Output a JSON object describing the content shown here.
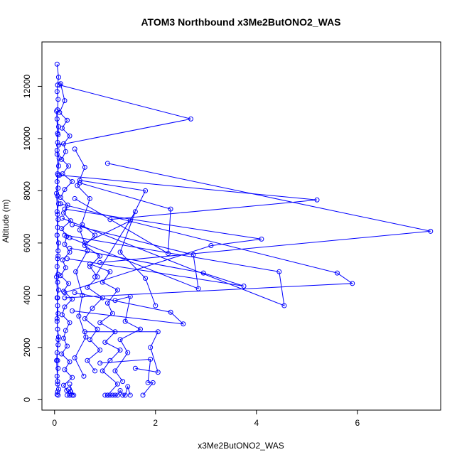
{
  "chart_data": {
    "type": "line",
    "title": "ATOM3 Northbound x3Me2ButONO2_WAS",
    "xlabel": "x3Me2ButONO2_WAS",
    "ylabel": "Altitude (m)",
    "xlim": [
      -0.25,
      7.65
    ],
    "ylim": [
      -400,
      13700
    ],
    "x_ticks": [
      0,
      2,
      4,
      6
    ],
    "x_tick_labels": [
      "0",
      "2",
      "4",
      "6"
    ],
    "y_ticks": [
      0,
      2000,
      4000,
      6000,
      8000,
      10000,
      12000
    ],
    "y_tick_labels": [
      "0",
      "2000",
      "4000",
      "6000",
      "8000",
      "10000",
      "12000"
    ],
    "grid": false,
    "legend": "none",
    "series_color": "#0000ff",
    "marker": "open-circle",
    "series": [
      {
        "x": [
          0.05,
          0.08,
          0.06,
          0.05,
          0.07,
          0.06,
          0.05,
          0.08,
          0.07,
          0.06,
          0.05,
          0.09,
          0.08,
          0.06,
          0.05,
          0.07,
          0.06,
          0.08,
          0.05,
          0.07,
          0.06,
          0.05,
          0.08,
          0.07,
          0.06,
          0.05,
          0.07,
          0.06,
          0.08,
          0.05,
          0.06,
          0.07,
          0.05,
          0.06,
          0.08,
          0.07,
          0.05,
          0.06,
          0.07,
          0.05,
          0.06,
          0.08,
          0.06,
          0.05,
          0.07
        ],
        "y": [
          12850,
          12350,
          12050,
          11800,
          11500,
          11100,
          10750,
          10450,
          10150,
          9850,
          9550,
          9250,
          8950,
          8650,
          8350,
          8100,
          7800,
          7500,
          7200,
          6900,
          6600,
          6300,
          6000,
          5700,
          5400,
          5100,
          4800,
          4500,
          4200,
          3900,
          3600,
          3300,
          3000,
          2700,
          2400,
          2100,
          1800,
          1500,
          1200,
          900,
          600,
          400,
          300,
          200,
          170
        ]
      },
      {
        "x": [
          0.12,
          0.2,
          0.1,
          0.25,
          0.15,
          0.3,
          0.18,
          0.22,
          0.14,
          0.28,
          0.16,
          0.35,
          0.2,
          0.12,
          0.26,
          0.18,
          0.32,
          0.14,
          0.24,
          0.2,
          0.3,
          0.16,
          0.22,
          0.12,
          0.28,
          0.18,
          0.35,
          0.2,
          0.15,
          0.3,
          0.22,
          0.18,
          0.25,
          0.14,
          0.3,
          0.2,
          0.35,
          0.18,
          0.24,
          0.3
        ],
        "y": [
          12100,
          11450,
          11000,
          10700,
          10400,
          10100,
          9800,
          9500,
          9200,
          8950,
          8650,
          8350,
          8050,
          7750,
          7450,
          7150,
          6850,
          6550,
          6250,
          5950,
          5650,
          5350,
          5050,
          4750,
          4450,
          4150,
          3850,
          3550,
          3250,
          2950,
          2650,
          2350,
          2050,
          1750,
          1450,
          1150,
          850,
          550,
          350,
          170
        ]
      },
      {
        "x": [
          0.1,
          2.7,
          0.08
        ],
        "y": [
          12050,
          10750,
          9750
        ]
      },
      {
        "x": [
          1.05,
          7.45,
          0.9
        ],
        "y": [
          9050,
          6450,
          5250
        ]
      },
      {
        "x": [
          0.1,
          5.2,
          1.1
        ],
        "y": [
          8600,
          7650,
          6900
        ]
      },
      {
        "x": [
          0.12,
          5.6,
          5.9,
          0.2
        ],
        "y": [
          7500,
          4850,
          4450,
          3900
        ]
      },
      {
        "x": [
          0.15,
          4.55,
          4.45,
          0.2
        ],
        "y": [
          6950,
          3600,
          4900,
          6300
        ]
      },
      {
        "x": [
          0.2,
          4.1,
          3.1,
          0.2
        ],
        "y": [
          7300,
          6150,
          5900,
          4100
        ]
      },
      {
        "x": [
          0.25,
          3.75,
          2.95,
          0.3
        ],
        "y": [
          5400,
          4350,
          4850,
          5800
        ]
      },
      {
        "x": [
          0.3,
          2.85,
          2.75,
          0.35
        ],
        "y": [
          6200,
          4250,
          5550,
          6700
        ]
      },
      {
        "x": [
          0.35,
          2.55,
          2.3,
          0.4
        ],
        "y": [
          3400,
          2900,
          3350,
          4100
        ]
      },
      {
        "x": [
          0.4,
          2.25,
          2.3,
          0.5
        ],
        "y": [
          7700,
          5600,
          7300,
          8300
        ]
      },
      {
        "x": [
          0.5,
          1.8,
          1.5,
          0.6
        ],
        "y": [
          8400,
          8000,
          6850,
          6000
        ]
      },
      {
        "x": [
          0.8,
          1.6,
          1.3,
          1.8,
          2.0
        ],
        "y": [
          4700,
          7200,
          5650,
          4650,
          3600
        ]
      },
      {
        "x": [
          0.6,
          2.05,
          1.9,
          2.05,
          1.6
        ],
        "y": [
          2600,
          2600,
          2000,
          1050,
          1200
        ]
      },
      {
        "x": [
          0.9,
          1.9,
          1.85,
          1.95,
          1.75
        ],
        "y": [
          1400,
          1550,
          650,
          650,
          170
        ]
      },
      {
        "x": [
          1.2,
          1.5,
          1.4,
          1.7,
          1.3,
          1.45,
          1.2,
          1.35
        ],
        "y": [
          3800,
          3950,
          3000,
          2700,
          2300,
          1800,
          1100,
          700
        ]
      },
      {
        "x": [
          0.7,
          1.1,
          0.95,
          1.25,
          1.05,
          1.15,
          0.9,
          1.2,
          1.0,
          1.3,
          1.1,
          0.95,
          1.25,
          1.05
        ],
        "y": [
          5200,
          4900,
          4500,
          4200,
          3700,
          3300,
          2950,
          2600,
          2200,
          1900,
          1500,
          1100,
          600,
          170
        ]
      },
      {
        "x": [
          0.55,
          0.8,
          0.6,
          0.9,
          0.7,
          0.85,
          0.65,
          0.95,
          0.75,
          0.6,
          0.85,
          0.7,
          0.9,
          0.65,
          0.8
        ],
        "y": [
          6700,
          6300,
          5900,
          5500,
          5100,
          4700,
          4300,
          3900,
          3500,
          3100,
          2700,
          2300,
          1900,
          1500,
          1100
        ]
      },
      {
        "x": [
          0.4,
          0.6,
          0.45,
          0.7,
          0.5,
          0.65,
          0.42,
          0.55,
          0.48,
          0.62,
          0.4,
          0.58
        ],
        "y": [
          9600,
          8900,
          8200,
          7700,
          6500,
          5700,
          4900,
          4000,
          3200,
          2400,
          1600,
          900
        ]
      },
      {
        "x": [
          1.0,
          1.05,
          1.1,
          1.15,
          1.2,
          1.25,
          1.3,
          1.35,
          1.4,
          1.45,
          1.5
        ],
        "y": [
          170,
          170,
          170,
          170,
          170,
          170,
          350,
          170,
          170,
          500,
          170
        ]
      },
      {
        "x": [
          0.25,
          0.3,
          0.35,
          0.28,
          0.32,
          0.38,
          0.3
        ],
        "y": [
          170,
          170,
          170,
          400,
          300,
          170,
          600
        ]
      },
      {
        "x": [
          0.04,
          0.06,
          0.05,
          0.07,
          0.04,
          0.06,
          0.05,
          0.07,
          0.04,
          0.06,
          0.05,
          0.07,
          0.04,
          0.06
        ],
        "y": [
          11050,
          10200,
          9400,
          8600,
          7900,
          7100,
          6300,
          5500,
          4700,
          3900,
          3100,
          2300,
          1500,
          700
        ]
      }
    ]
  }
}
